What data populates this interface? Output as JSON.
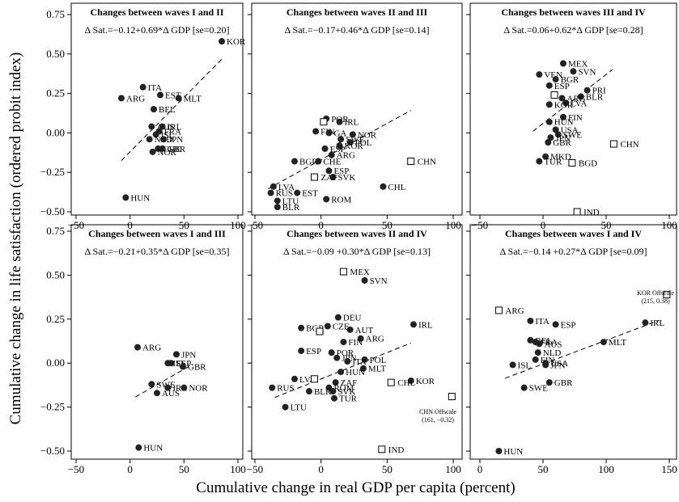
{
  "figure": {
    "ylabel": "Cumulative change in life satisfaction (ordered probit index)",
    "xlabel": "Cumulative change in real GDP per capita (percent)"
  },
  "chart_data": [
    {
      "type": "scatter",
      "title": "Changes between waves I and II",
      "equation": "Δ Sat.=−0.12+0.69*Δ GDP [se=0.20]",
      "xlim": [
        -50,
        100
      ],
      "ylim": [
        -0.5,
        0.75
      ],
      "xticks": [
        "−50",
        "0",
        "50",
        "100"
      ],
      "yticks": [
        "−0.50",
        "−0.25",
        "0.00",
        "0.25",
        "0.50",
        "0.75"
      ],
      "fit": {
        "x": [
          -8,
          86
        ]
      },
      "points": [
        {
          "label": "KOR",
          "x": 85,
          "y": 0.58
        },
        {
          "label": "ARG",
          "x": -8,
          "y": 0.22
        },
        {
          "label": "ITA",
          "x": 12,
          "y": 0.29
        },
        {
          "label": "EST",
          "x": 28,
          "y": 0.24
        },
        {
          "label": "MLT",
          "x": 45,
          "y": 0.22
        },
        {
          "label": "BEL",
          "x": 22,
          "y": 0.15
        },
        {
          "label": "AUS",
          "x": 20,
          "y": 0.04
        },
        {
          "label": "IRL",
          "x": 30,
          "y": 0.04
        },
        {
          "label": "FRA",
          "x": 27,
          "y": 0.01
        },
        {
          "label": "ISL",
          "x": 24,
          "y": -0.01
        },
        {
          "label": "NLD",
          "x": 18,
          "y": -0.04
        },
        {
          "label": "JPN",
          "x": 31,
          "y": -0.04
        },
        {
          "label": "CHE",
          "x": 26,
          "y": -0.1
        },
        {
          "label": "GBR",
          "x": 30,
          "y": -0.1
        },
        {
          "label": "NOR",
          "x": 21,
          "y": -0.12
        },
        {
          "label": "HUN",
          "x": -4,
          "y": -0.41
        }
      ],
      "open_points": []
    },
    {
      "type": "scatter",
      "title": "Changes between waves II and III",
      "equation": "Δ Sat.=−0.17+0.46*Δ GDP [se=0.14]",
      "xlim": [
        -50,
        100
      ],
      "ylim": [
        -0.5,
        0.75
      ],
      "xticks": [
        "−50",
        "0",
        "50",
        "100"
      ],
      "yticks": [
        "−0.50",
        "−0.25",
        "0.00",
        "0.25",
        "0.50",
        "0.75"
      ],
      "fit": {
        "x": [
          -40,
          68
        ]
      },
      "points": [
        {
          "label": "POR",
          "x": 4,
          "y": 0.09
        },
        {
          "label": "IRL",
          "x": 14,
          "y": 0.07
        },
        {
          "label": "FIN",
          "x": -4,
          "y": 0.01
        },
        {
          "label": "GA",
          "x": 6,
          "y": 0.0
        },
        {
          "label": "NOR",
          "x": 24,
          "y": -0.01
        },
        {
          "label": "SWE",
          "x": 15,
          "y": -0.04
        },
        {
          "label": "POL",
          "x": 22,
          "y": -0.06
        },
        {
          "label": "KOR",
          "x": 14,
          "y": -0.08
        },
        {
          "label": "ESP",
          "x": 3,
          "y": -0.1
        },
        {
          "label": "BGR",
          "x": -20,
          "y": -0.18
        },
        {
          "label": "CHE",
          "x": -2,
          "y": -0.18
        },
        {
          "label": "ARG",
          "x": 8,
          "y": -0.14
        },
        {
          "label": "ESP",
          "x": 6,
          "y": -0.24
        },
        {
          "label": "SVK",
          "x": 9,
          "y": -0.28
        },
        {
          "label": "LVA",
          "x": -36,
          "y": -0.34
        },
        {
          "label": "RUS",
          "x": -38,
          "y": -0.38
        },
        {
          "label": "EST",
          "x": -18,
          "y": -0.38
        },
        {
          "label": "LTU",
          "x": -33,
          "y": -0.43
        },
        {
          "label": "BLR",
          "x": -33,
          "y": -0.47
        },
        {
          "label": "ROM",
          "x": 4,
          "y": -0.42
        },
        {
          "label": "CHL",
          "x": 47,
          "y": -0.34
        }
      ],
      "open_points": [
        {
          "label": "CHN",
          "x": 68,
          "y": -0.18
        },
        {
          "label": "ZAF",
          "x": -5,
          "y": -0.28
        },
        {
          "label": "",
          "x": 2,
          "y": 0.07
        }
      ]
    },
    {
      "type": "scatter",
      "title": "Changes between waves III and IV",
      "equation": "Δ Sat.=0.06+0.62*Δ GDP [se=0.28]",
      "xlim": [
        -50,
        100
      ],
      "ylim": [
        -0.5,
        0.75
      ],
      "xticks": [
        "−50",
        "0",
        "50",
        "100"
      ],
      "yticks": [
        "−0.50",
        "−0.25",
        "0.00",
        "0.25",
        "0.50",
        "0.75"
      ],
      "fit": {
        "x": [
          -8,
          55
        ]
      },
      "points": [
        {
          "label": "MEX",
          "x": 16,
          "y": 0.44
        },
        {
          "label": "SVN",
          "x": 24,
          "y": 0.39
        },
        {
          "label": "VEN",
          "x": -3,
          "y": 0.37
        },
        {
          "label": "BGR",
          "x": 10,
          "y": 0.34
        },
        {
          "label": "ESP",
          "x": 5,
          "y": 0.3
        },
        {
          "label": "PRI",
          "x": 35,
          "y": 0.27
        },
        {
          "label": "BLR",
          "x": 30,
          "y": 0.23
        },
        {
          "label": "ARG",
          "x": 15,
          "y": 0.22
        },
        {
          "label": "LVA",
          "x": 18,
          "y": 0.19
        },
        {
          "label": "KOR",
          "x": 5,
          "y": 0.18
        },
        {
          "label": "FIN",
          "x": 16,
          "y": 0.1
        },
        {
          "label": "HUN",
          "x": 5,
          "y": 0.07
        },
        {
          "label": "USA",
          "x": 10,
          "y": 0.02
        },
        {
          "label": "SWE",
          "x": 12,
          "y": -0.01
        },
        {
          "label": "JPN",
          "x": 6,
          "y": -0.03
        },
        {
          "label": "GBR",
          "x": 4,
          "y": -0.06
        },
        {
          "label": "MKD",
          "x": 2,
          "y": -0.15
        },
        {
          "label": "TUR",
          "x": -3,
          "y": -0.18
        }
      ],
      "open_points": [
        {
          "label": "CHN",
          "x": 56,
          "y": -0.07
        },
        {
          "label": "BGD",
          "x": 23,
          "y": -0.19
        },
        {
          "label": "IND",
          "x": 27,
          "y": -0.5
        },
        {
          "label": "",
          "x": 9,
          "y": 0.24
        }
      ]
    },
    {
      "type": "scatter",
      "title": "Changes between waves I and III",
      "equation": "Δ Sat.=−0.21+0.35*Δ GDP [se=0.35]",
      "xlim": [
        -50,
        100
      ],
      "ylim": [
        -0.5,
        0.75
      ],
      "xticks": [
        "−50",
        "0",
        "50",
        "100"
      ],
      "yticks": [
        "−0.50",
        "−0.25",
        "0.00",
        "0.25",
        "0.50",
        "0.75"
      ],
      "fit": {
        "x": [
          5,
          58
        ]
      },
      "points": [
        {
          "label": "ARG",
          "x": 7,
          "y": 0.09
        },
        {
          "label": "JPN",
          "x": 43,
          "y": 0.05
        },
        {
          "label": "ISL",
          "x": 35,
          "y": 0.0
        },
        {
          "label": "ESP",
          "x": 38,
          "y": 0.0
        },
        {
          "label": "GBR",
          "x": 49,
          "y": -0.02
        },
        {
          "label": "SWE",
          "x": 20,
          "y": -0.12
        },
        {
          "label": "IRL",
          "x": 35,
          "y": -0.14
        },
        {
          "label": "NOR",
          "x": 50,
          "y": -0.14
        },
        {
          "label": "AUS",
          "x": 25,
          "y": -0.17
        },
        {
          "label": "HUN",
          "x": 8,
          "y": -0.48
        }
      ],
      "open_points": []
    },
    {
      "type": "scatter",
      "title": "Changes between waves II and IV",
      "equation": "Δ Sat.=−0.09 +0.30*Δ GDP [se=0.13]",
      "xlim": [
        -50,
        100
      ],
      "ylim": [
        -0.5,
        0.75
      ],
      "xticks": [
        "−50",
        "0",
        "50",
        "100"
      ],
      "yticks": [
        "−0.50",
        "−0.25",
        "0.00",
        "0.25",
        "0.50",
        "0.75"
      ],
      "fit": {
        "x": [
          -35,
          68
        ]
      },
      "annotation": {
        "label": "CHN Offscale",
        "value": "(161, −0.32)"
      },
      "points": [
        {
          "label": "SVN",
          "x": 33,
          "y": 0.47
        },
        {
          "label": "DEU",
          "x": 13,
          "y": 0.26
        },
        {
          "label": "IRL",
          "x": 70,
          "y": 0.22
        },
        {
          "label": "BGR",
          "x": -15,
          "y": 0.2
        },
        {
          "label": "AUT",
          "x": 22,
          "y": 0.19
        },
        {
          "label": "CZE",
          "x": 5,
          "y": 0.21
        },
        {
          "label": "ARG",
          "x": 30,
          "y": 0.14
        },
        {
          "label": "FIN",
          "x": 17,
          "y": 0.12
        },
        {
          "label": "ESP",
          "x": -15,
          "y": 0.07
        },
        {
          "label": "POR",
          "x": 8,
          "y": 0.06
        },
        {
          "label": "POL",
          "x": 33,
          "y": 0.02
        },
        {
          "label": "JPN",
          "x": 12,
          "y": 0.03
        },
        {
          "label": "ITA",
          "x": 20,
          "y": 0.01
        },
        {
          "label": "MLT",
          "x": 32,
          "y": -0.03
        },
        {
          "label": "HUN",
          "x": 15,
          "y": -0.05
        },
        {
          "label": "KOR",
          "x": 68,
          "y": -0.1
        },
        {
          "label": "LVA",
          "x": -20,
          "y": -0.09
        },
        {
          "label": "ZAF",
          "x": 11,
          "y": -0.11
        },
        {
          "label": "ROM",
          "x": 6,
          "y": -0.14
        },
        {
          "label": "SVK",
          "x": 9,
          "y": -0.16
        },
        {
          "label": "BLR",
          "x": -9,
          "y": -0.16
        },
        {
          "label": "RUS",
          "x": -37,
          "y": -0.14
        },
        {
          "label": "TUR",
          "x": 10,
          "y": -0.2
        },
        {
          "label": "LTU",
          "x": -27,
          "y": -0.25
        }
      ],
      "open_points": [
        {
          "label": "MEX",
          "x": 17,
          "y": 0.52
        },
        {
          "label": "CHL",
          "x": 53,
          "y": -0.11
        },
        {
          "label": "",
          "x": -1,
          "y": 0.18
        },
        {
          "label": "",
          "x": -5,
          "y": -0.09
        },
        {
          "label": "",
          "x": 99,
          "y": -0.19
        },
        {
          "label": "IND",
          "x": 46,
          "y": -0.49
        }
      ]
    },
    {
      "type": "scatter",
      "title": "Changes between waves I and IV",
      "equation": "Δ Sat.=−0.14 +0.27*Δ GDP [se=0.09]",
      "xlim": [
        -50,
        150
      ],
      "ylim": [
        -0.5,
        0.75
      ],
      "xticks": [
        "0",
        "50",
        "100",
        "150"
      ],
      "yticks": [
        "−0.50",
        "−0.25",
        "0.00",
        "0.25",
        "0.50",
        "0.75"
      ],
      "fit": {
        "x": [
          20,
          142
        ]
      },
      "annotation": {
        "label": "KOR Offscale",
        "value": "(215, 0.38)"
      },
      "points": [
        {
          "label": "ITA",
          "x": 40,
          "y": 0.24
        },
        {
          "label": "ESP",
          "x": 60,
          "y": 0.22
        },
        {
          "label": "IRL",
          "x": 131,
          "y": 0.23
        },
        {
          "label": "BEL",
          "x": 40,
          "y": 0.13
        },
        {
          "label": "FRA",
          "x": 44,
          "y": 0.12
        },
        {
          "label": "AUS",
          "x": 47,
          "y": 0.11
        },
        {
          "label": "MLT",
          "x": 98,
          "y": 0.12
        },
        {
          "label": "NLD",
          "x": 46,
          "y": 0.06
        },
        {
          "label": "FIN",
          "x": 44,
          "y": 0.02
        },
        {
          "label": "USA",
          "x": 52,
          "y": 0.0
        },
        {
          "label": "JPN",
          "x": 52,
          "y": -0.01
        },
        {
          "label": "ISL",
          "x": 26,
          "y": -0.01
        },
        {
          "label": "SWE",
          "x": 35,
          "y": -0.14
        },
        {
          "label": "GBR",
          "x": 55,
          "y": -0.11
        },
        {
          "label": "HUN",
          "x": 15,
          "y": -0.5
        }
      ],
      "open_points": [
        {
          "label": "ARG",
          "x": 15,
          "y": 0.3
        },
        {
          "label": "",
          "x": 148,
          "y": 0.39
        }
      ]
    }
  ]
}
